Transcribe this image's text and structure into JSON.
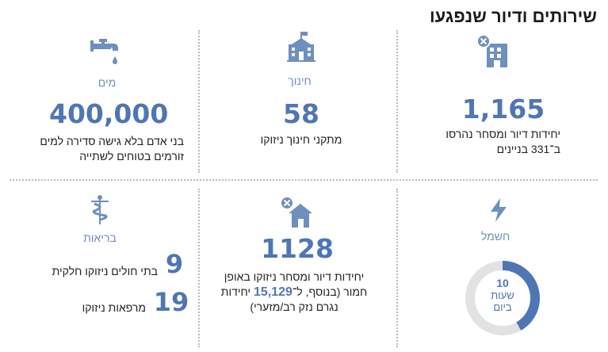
{
  "title": "שירותים ודיור שנפגעו",
  "cards": {
    "water": {
      "category": "מים",
      "value": "400,000",
      "line1": "בני אדם בלא גישה סדירה למים",
      "line2": "זורמים בטוחים לשתייה"
    },
    "education": {
      "category": "חינוך",
      "value": "58",
      "line1": "מתקני חינוך ניזוקו"
    },
    "housing_destroyed": {
      "value": "1,165",
      "line1": "יחידות דיור ומסחר נהרסו",
      "line2": "ב־331 בניינים"
    },
    "health": {
      "category": "בריאות",
      "items": [
        {
          "value": "9",
          "label": "בתי חולים ניזוקו חלקית"
        },
        {
          "value": "19",
          "label": "מרפאות ניזוקו"
        }
      ]
    },
    "housing_damaged": {
      "value": "1128",
      "line1": "יחידות דיור ומסחר ניזוקו באופן",
      "line2_pre": "חמור (בנוסף, ל־",
      "line2_num": "15,129",
      "line2_post": " יחידות",
      "line3": "נגרם נזק רב/מזערי)"
    },
    "electricity": {
      "category": "חשמל",
      "donut_value": "10",
      "donut_line1": "שעות",
      "donut_line2": "ביום",
      "donut_fraction": 0.4167
    }
  },
  "colors": {
    "accent": "#4f76b3",
    "light_accent": "#6e8fbf",
    "track": "#e2e2e2"
  },
  "icons": [
    "faucet-icon",
    "school-icon",
    "destroyed-building-icon",
    "caduceus-icon",
    "damaged-house-icon",
    "lightning-icon"
  ]
}
